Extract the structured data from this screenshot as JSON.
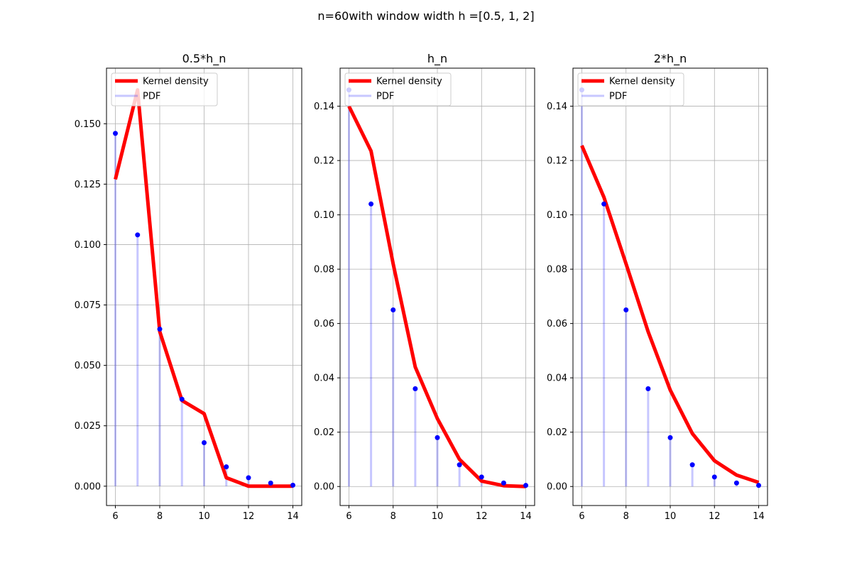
{
  "figure": {
    "suptitle": "n=60with window width h =[0.5, 1, 2]"
  },
  "colors": {
    "kernel": "#ff0000",
    "pdf_line": "#0000ff",
    "pdf_point": "#0000ff",
    "grid": "#b0b0b0",
    "frame": "#000000"
  },
  "legend": {
    "entries": [
      "Kernel density",
      "PDF"
    ],
    "placement": "upper-left"
  },
  "chart_data": [
    {
      "type": "line",
      "title": "0.5*h_n",
      "xlabel": "",
      "ylabel": "",
      "xlim": [
        5.6,
        14.4
      ],
      "ylim": [
        -0.008,
        0.173
      ],
      "xticks": [
        6,
        8,
        10,
        12,
        14
      ],
      "xtick_labels": [
        "6",
        "8",
        "10",
        "12",
        "14"
      ],
      "yticks": [
        0.0,
        0.025,
        0.05,
        0.075,
        0.1,
        0.125,
        0.15
      ],
      "ytick_labels": [
        "0.000",
        "0.025",
        "0.050",
        "0.075",
        "0.100",
        "0.125",
        "0.150"
      ],
      "grid": true,
      "legend": "upper-left",
      "series": [
        {
          "name": "Kernel density",
          "x": [
            6,
            7,
            8,
            9,
            10,
            11,
            12,
            13,
            14
          ],
          "y": [
            0.127,
            0.164,
            0.064,
            0.0355,
            0.03,
            0.0035,
            0.0,
            0.0,
            0.0
          ]
        },
        {
          "name": "PDF",
          "x": [
            6,
            7,
            8,
            9,
            10,
            11,
            12,
            13,
            14
          ],
          "y": [
            0.146,
            0.104,
            0.065,
            0.036,
            0.018,
            0.008,
            0.0035,
            0.0013,
            0.0004
          ]
        }
      ]
    },
    {
      "type": "line",
      "title": "h_n",
      "xlabel": "",
      "ylabel": "",
      "xlim": [
        5.6,
        14.4
      ],
      "ylim": [
        -0.007,
        0.154
      ],
      "xticks": [
        6,
        8,
        10,
        12,
        14
      ],
      "xtick_labels": [
        "6",
        "8",
        "10",
        "12",
        "14"
      ],
      "yticks": [
        0.0,
        0.02,
        0.04,
        0.06,
        0.08,
        0.1,
        0.12,
        0.14
      ],
      "ytick_labels": [
        "0.00",
        "0.02",
        "0.04",
        "0.06",
        "0.08",
        "0.10",
        "0.12",
        "0.14"
      ],
      "grid": true,
      "legend": "upper-left",
      "series": [
        {
          "name": "Kernel density",
          "x": [
            6,
            7,
            8,
            9,
            10,
            11,
            12,
            13,
            14
          ],
          "y": [
            0.14,
            0.1235,
            0.082,
            0.044,
            0.025,
            0.01,
            0.002,
            0.0003,
            0.0
          ]
        },
        {
          "name": "PDF",
          "x": [
            6,
            7,
            8,
            9,
            10,
            11,
            12,
            13,
            14
          ],
          "y": [
            0.146,
            0.104,
            0.065,
            0.036,
            0.018,
            0.008,
            0.0035,
            0.0013,
            0.0004
          ]
        }
      ]
    },
    {
      "type": "line",
      "title": "2*h_n",
      "xlabel": "",
      "ylabel": "",
      "xlim": [
        5.6,
        14.4
      ],
      "ylim": [
        -0.007,
        0.154
      ],
      "xticks": [
        6,
        8,
        10,
        12,
        14
      ],
      "xtick_labels": [
        "6",
        "8",
        "10",
        "12",
        "14"
      ],
      "yticks": [
        0.0,
        0.02,
        0.04,
        0.06,
        0.08,
        0.1,
        0.12,
        0.14
      ],
      "ytick_labels": [
        "0.00",
        "0.02",
        "0.04",
        "0.06",
        "0.08",
        "0.10",
        "0.12",
        "0.14"
      ],
      "grid": true,
      "legend": "upper-left",
      "series": [
        {
          "name": "Kernel density",
          "x": [
            6,
            7,
            8,
            9,
            10,
            11,
            12,
            13,
            14
          ],
          "y": [
            0.1255,
            0.1065,
            0.082,
            0.057,
            0.0355,
            0.0195,
            0.0095,
            0.0042,
            0.0015
          ]
        },
        {
          "name": "PDF",
          "x": [
            6,
            7,
            8,
            9,
            10,
            11,
            12,
            13,
            14
          ],
          "y": [
            0.146,
            0.104,
            0.065,
            0.036,
            0.018,
            0.008,
            0.0035,
            0.0013,
            0.0004
          ]
        }
      ]
    }
  ]
}
